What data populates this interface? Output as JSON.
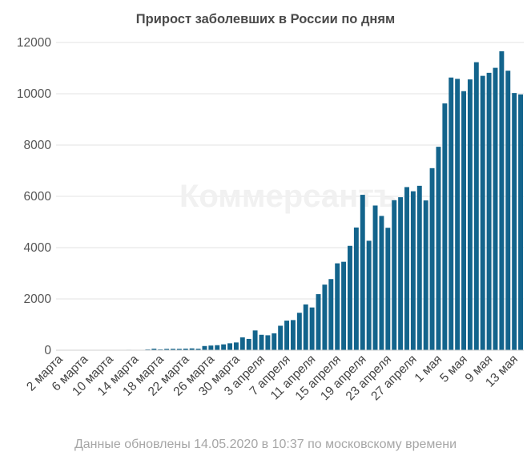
{
  "chart_data": {
    "type": "bar",
    "title": "Прирост заболевших в России по дням",
    "xlabel": "",
    "ylabel": "",
    "ylim": [
      0,
      12000
    ],
    "y_ticks": [
      "0",
      "2000",
      "4000",
      "6000",
      "8000",
      "10000",
      "12000"
    ],
    "y_tick_values": [
      0,
      2000,
      4000,
      6000,
      8000,
      10000,
      12000
    ],
    "grid": true,
    "legend": "none",
    "bar_color": "#13648c",
    "watermark": "Коммерсантъ",
    "x_tick_labels": [
      {
        "index": 0,
        "label": "2 марта"
      },
      {
        "index": 4,
        "label": "6 марта"
      },
      {
        "index": 8,
        "label": "10 марта"
      },
      {
        "index": 12,
        "label": "14 марта"
      },
      {
        "index": 16,
        "label": "18 марта"
      },
      {
        "index": 20,
        "label": "22 марта"
      },
      {
        "index": 24,
        "label": "26 марта"
      },
      {
        "index": 28,
        "label": "30 марта"
      },
      {
        "index": 32,
        "label": "3 апреля"
      },
      {
        "index": 36,
        "label": "7 апреля"
      },
      {
        "index": 40,
        "label": "11 апреля"
      },
      {
        "index": 44,
        "label": "15 апреля"
      },
      {
        "index": 48,
        "label": "19 апреля"
      },
      {
        "index": 52,
        "label": "23 апреля"
      },
      {
        "index": 56,
        "label": "27 апреля"
      },
      {
        "index": 60,
        "label": "1 мая"
      },
      {
        "index": 64,
        "label": "5 мая"
      },
      {
        "index": 68,
        "label": "9 мая"
      },
      {
        "index": 72,
        "label": "13 мая"
      }
    ],
    "categories": [
      "2 марта",
      "3 марта",
      "4 марта",
      "5 марта",
      "6 марта",
      "7 марта",
      "8 марта",
      "9 марта",
      "10 марта",
      "11 марта",
      "12 марта",
      "13 марта",
      "14 марта",
      "15 марта",
      "16 марта",
      "17 марта",
      "18 марта",
      "19 марта",
      "20 марта",
      "21 марта",
      "22 марта",
      "23 марта",
      "24 марта",
      "25 марта",
      "26 марта",
      "27 марта",
      "28 марта",
      "29 марта",
      "30 марта",
      "31 марта",
      "1 апреля",
      "2 апреля",
      "3 апреля",
      "4 апреля",
      "5 апреля",
      "6 апреля",
      "7 апреля",
      "8 апреля",
      "9 апреля",
      "10 апреля",
      "11 апреля",
      "12 апреля",
      "13 апреля",
      "14 апреля",
      "15 апреля",
      "16 апреля",
      "17 апреля",
      "18 апреля",
      "19 апреля",
      "20 апреля",
      "21 апреля",
      "22 апреля",
      "23 апреля",
      "24 апреля",
      "25 апреля",
      "26 апреля",
      "27 апреля",
      "28 апреля",
      "29 апреля",
      "30 апреля",
      "1 мая",
      "2 мая",
      "3 мая",
      "4 мая",
      "5 мая",
      "6 мая",
      "7 мая",
      "8 мая",
      "9 мая",
      "10 мая",
      "11 мая",
      "12 мая",
      "13 мая",
      "14 мая"
    ],
    "values": [
      1,
      0,
      0,
      0,
      3,
      4,
      0,
      3,
      3,
      8,
      6,
      17,
      14,
      4,
      30,
      59,
      33,
      52,
      54,
      53,
      61,
      71,
      57,
      163,
      182,
      196,
      228,
      270,
      302,
      501,
      440,
      771,
      601,
      582,
      658,
      954,
      1154,
      1175,
      1459,
      1786,
      1667,
      2186,
      2558,
      2774,
      3388,
      3448,
      4070,
      4785,
      6060,
      4268,
      5642,
      5236,
      4774,
      5849,
      5966,
      6361,
      6198,
      6411,
      5841,
      7099,
      7933,
      9623,
      10633,
      10581,
      10102,
      10559,
      11231,
      10699,
      10817,
      11012,
      11656,
      10899,
      10028,
      9974
    ]
  },
  "footer_note": "Данные обновлены 14.05.2020 в 10:37 по московскому времени"
}
